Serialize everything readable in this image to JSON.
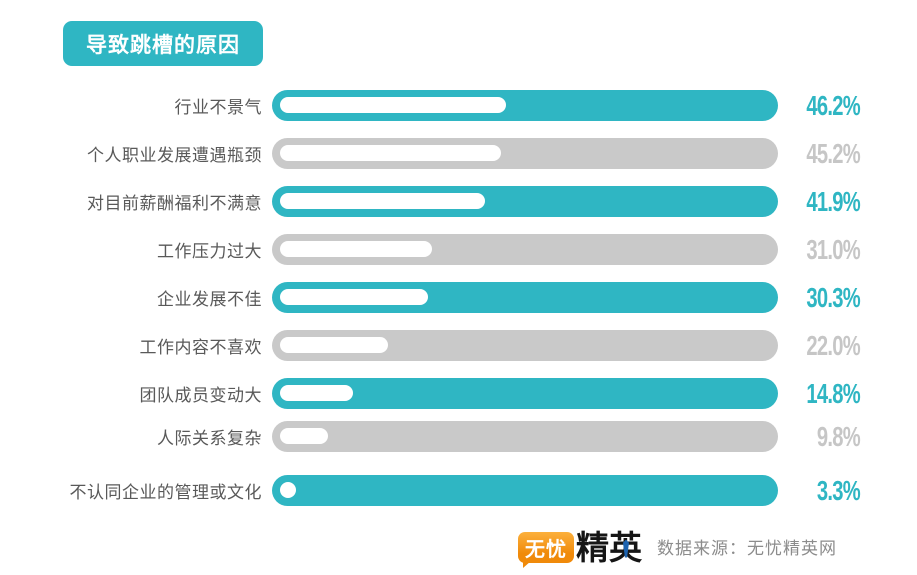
{
  "chart_data": {
    "type": "bar",
    "orientation": "horizontal",
    "title": "导致跳槽的原因",
    "unit": "%",
    "xlim": [
      0,
      100
    ],
    "grid": false,
    "legend": null,
    "rows": [
      {
        "label": "行业不景气",
        "value": 46.2,
        "value_label": "46.2%",
        "color": "teal"
      },
      {
        "label": "个人职业发展遭遇瓶颈",
        "value": 45.2,
        "value_label": "45.2%",
        "color": "gray"
      },
      {
        "label": "对目前薪酬福利不满意",
        "value": 41.9,
        "value_label": "41.9%",
        "color": "teal"
      },
      {
        "label": "工作压力过大",
        "value": 31.0,
        "value_label": "31.0%",
        "color": "gray"
      },
      {
        "label": "企业发展不佳",
        "value": 30.3,
        "value_label": "30.3%",
        "color": "teal"
      },
      {
        "label": "工作内容不喜欢",
        "value": 22.0,
        "value_label": "22.0%",
        "color": "gray"
      },
      {
        "label": "团队成员变动大",
        "value": 14.8,
        "value_label": "14.8%",
        "color": "teal"
      },
      {
        "label": "人际关系复杂",
        "value": 9.8,
        "value_label": "9.8%",
        "color": "gray"
      },
      {
        "label": "不认同企业的管理或文化",
        "value": 3.3,
        "value_label": "3.3%",
        "color": "teal"
      }
    ]
  },
  "footer": {
    "logo_text_bubble": "无忧",
    "logo_text_main": "精英",
    "source_label": "数据来源：无忧精英网"
  },
  "colors": {
    "teal": "#2FB6C3",
    "gray": "#C9C9C9",
    "pct_gray": "#C6C6C6",
    "label_text": "#595959",
    "source_text": "#8C8C8C",
    "logo_orange": "#F08A0A",
    "logo_black": "#151515",
    "tie_blue": "#1D63B0"
  }
}
